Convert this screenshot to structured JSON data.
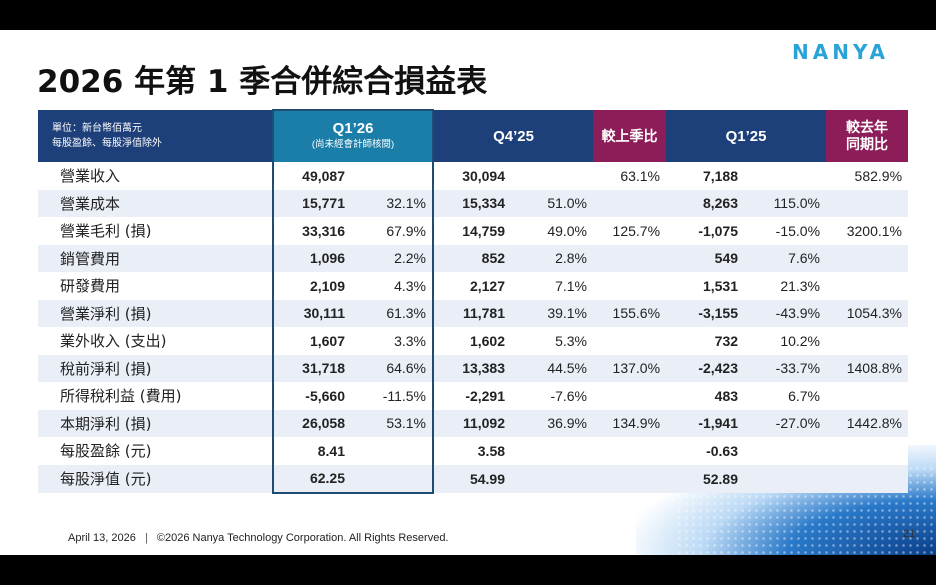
{
  "title": "2026 年第 1 季合併綜合損益表",
  "logo": "NANYA",
  "unit_note": [
    "單位：新台幣佰萬元",
    "每股盈餘、每股淨值除外"
  ],
  "headers": {
    "q126": "Q1’26",
    "q126_note": "(尚未經會計師核閱)",
    "q425": "Q4’25",
    "qoq": "較上季比",
    "q125": "Q1’25",
    "yoy": [
      "較去年",
      "同期比"
    ]
  },
  "rows": [
    {
      "label": "營業收入",
      "q126": "49,087",
      "q126_pct": "",
      "q425": "30,094",
      "q425_pct": "",
      "qoq": "63.1%",
      "q125": "7,188",
      "q125_pct": "",
      "yoy": "582.9%"
    },
    {
      "label": "營業成本",
      "q126": "15,771",
      "q126_pct": "32.1%",
      "q425": "15,334",
      "q425_pct": "51.0%",
      "qoq": "",
      "q125": "8,263",
      "q125_pct": "115.0%",
      "yoy": ""
    },
    {
      "label": "營業毛利 (損)",
      "q126": "33,316",
      "q126_pct": "67.9%",
      "q425": "14,759",
      "q425_pct": "49.0%",
      "qoq": "125.7%",
      "q125": "-1,075",
      "q125_pct": "-15.0%",
      "yoy": "3200.1%"
    },
    {
      "label": "銷管費用",
      "q126": "1,096",
      "q126_pct": "2.2%",
      "q425": "852",
      "q425_pct": "2.8%",
      "qoq": "",
      "q125": "549",
      "q125_pct": "7.6%",
      "yoy": ""
    },
    {
      "label": "研發費用",
      "q126": "2,109",
      "q126_pct": "4.3%",
      "q425": "2,127",
      "q425_pct": "7.1%",
      "qoq": "",
      "q125": "1,531",
      "q125_pct": "21.3%",
      "yoy": ""
    },
    {
      "label": "營業淨利 (損)",
      "q126": "30,111",
      "q126_pct": "61.3%",
      "q425": "11,781",
      "q425_pct": "39.1%",
      "qoq": "155.6%",
      "q125": "-3,155",
      "q125_pct": "-43.9%",
      "yoy": "1054.3%"
    },
    {
      "label": "業外收入 (支出)",
      "q126": "1,607",
      "q126_pct": "3.3%",
      "q425": "1,602",
      "q425_pct": "5.3%",
      "qoq": "",
      "q125": "732",
      "q125_pct": "10.2%",
      "yoy": ""
    },
    {
      "label": "稅前淨利 (損)",
      "q126": "31,718",
      "q126_pct": "64.6%",
      "q425": "13,383",
      "q425_pct": "44.5%",
      "qoq": "137.0%",
      "q125": "-2,423",
      "q125_pct": "-33.7%",
      "yoy": "1408.8%"
    },
    {
      "label": "所得稅利益 (費用)",
      "q126": "-5,660",
      "q126_pct": "-11.5%",
      "q425": "-2,291",
      "q425_pct": "-7.6%",
      "qoq": "",
      "q125": "483",
      "q125_pct": "6.7%",
      "yoy": ""
    },
    {
      "label": "本期淨利 (損)",
      "q126": "26,058",
      "q126_pct": "53.1%",
      "q425": "11,092",
      "q425_pct": "36.9%",
      "qoq": "134.9%",
      "q125": "-1,941",
      "q125_pct": "-27.0%",
      "yoy": "1442.8%"
    },
    {
      "label": "每股盈餘 (元)",
      "q126": "8.41",
      "q126_pct": "",
      "q425": "3.58",
      "q425_pct": "",
      "qoq": "",
      "q125": "-0.63",
      "q125_pct": "",
      "yoy": ""
    },
    {
      "label": "每股淨值 (元)",
      "q126": "62.25",
      "q126_pct": "",
      "q425": "54.99",
      "q425_pct": "",
      "qoq": "",
      "q125": "52.89",
      "q125_pct": "",
      "yoy": ""
    }
  ],
  "footer": {
    "date": "April 13, 2026",
    "separator": "|",
    "copyright": "©2026 Nanya Technology Corporation. All Rights Reserved."
  },
  "page_number": "21"
}
